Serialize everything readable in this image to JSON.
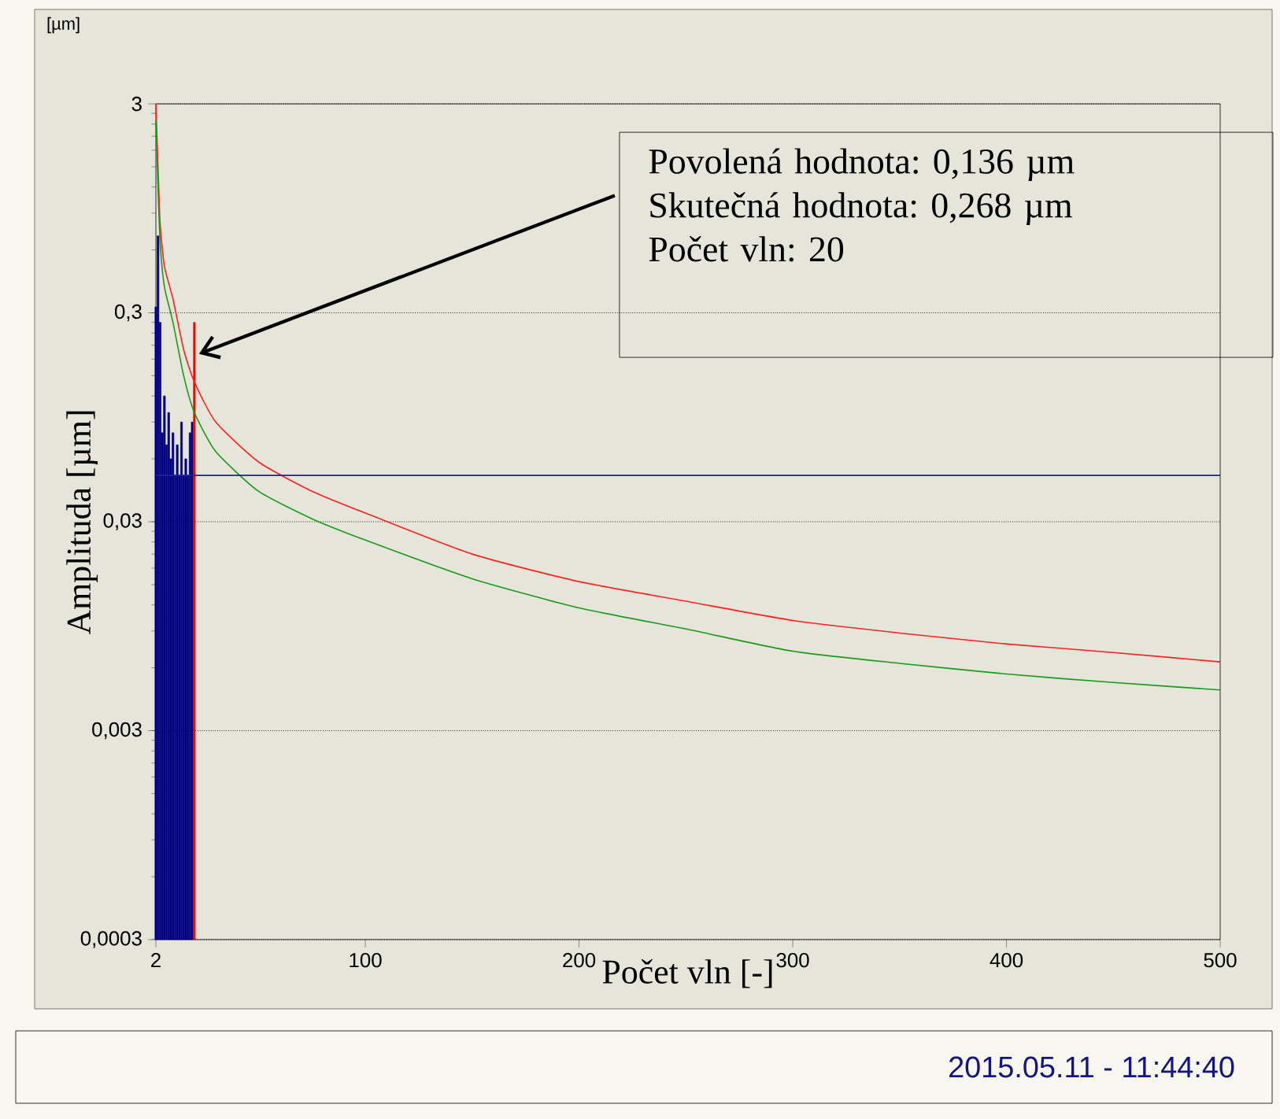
{
  "chart_data": {
    "type": "bar",
    "xlabel": "Počet vln [-]",
    "ylabel": "Amplituda [µm]",
    "xlim": [
      2,
      500
    ],
    "xticks": [
      2,
      100,
      200,
      300,
      400,
      500
    ],
    "ylim": [
      0.0003,
      3
    ],
    "log": "y",
    "yticks": [
      {
        "value": 0.0003,
        "label": "0,0003"
      },
      {
        "value": 0.003,
        "label": "0,003"
      },
      {
        "value": 0.03,
        "label": "0,03"
      },
      {
        "value": 0.3,
        "label": "0,3"
      },
      3
    ],
    "grid": "y",
    "marker": "none",
    "series": [
      {
        "color": "#000080",
        "x": [
          2,
          3,
          4,
          5,
          6,
          7,
          8,
          9,
          10,
          11,
          12,
          13,
          14,
          15,
          16,
          17,
          18,
          19
        ],
        "values": [
          0.32,
          0.7,
          0.27,
          0.08,
          0.12,
          0.07,
          0.1,
          0.06,
          0.08,
          0.05,
          0.07,
          0.05,
          0.09,
          0.05,
          0.06,
          0.05,
          0.08,
          0.09
        ]
      },
      {
        "color": "#ff0000",
        "x": [
          20
        ],
        "values": [
          0.27
        ]
      },
      {
        "type": "line",
        "color": "#ff2020",
        "x": [
          2,
          3,
          4,
          6,
          10,
          15,
          20,
          30,
          50,
          75,
          100,
          150,
          200,
          250,
          300,
          350,
          400,
          450,
          500
        ],
        "values": [
          3,
          1.5,
          0.8,
          0.5,
          0.35,
          0.2,
          0.14,
          0.09,
          0.058,
          0.042,
          0.033,
          0.021,
          0.0155,
          0.0125,
          0.0101,
          0.0088,
          0.0078,
          0.0071,
          0.0064
        ]
      },
      {
        "type": "line",
        "color": "#1a9a1a",
        "x": [
          2,
          3,
          4,
          6,
          10,
          15,
          20,
          30,
          50,
          75,
          100,
          150,
          200,
          250,
          300,
          350,
          400,
          450,
          500
        ],
        "values": [
          2.5,
          1.2,
          0.65,
          0.4,
          0.27,
          0.15,
          0.1,
          0.065,
          0.042,
          0.031,
          0.0245,
          0.016,
          0.0116,
          0.0092,
          0.0072,
          0.0063,
          0.0056,
          0.0051,
          0.0047
        ]
      }
    ],
    "ref_lines": [
      {
        "axis": "y",
        "value": 0.05,
        "color": "#2020a0"
      }
    ],
    "annotations": [
      "Povolená hodnota: 0,136 µm",
      "Skutečná hodnota: 0,268 µm",
      "Počet vln: 20",
      "[µm]",
      "2015.05.11  -  11:44:40"
    ]
  }
}
